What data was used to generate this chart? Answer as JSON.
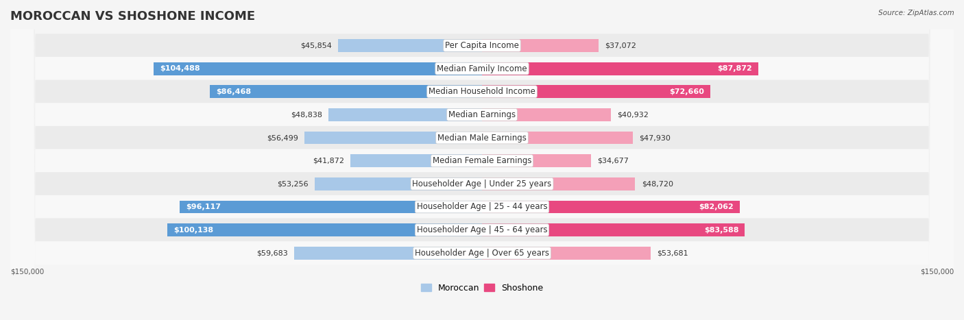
{
  "title": "MOROCCAN VS SHOSHONE INCOME",
  "source": "Source: ZipAtlas.com",
  "categories": [
    "Per Capita Income",
    "Median Family Income",
    "Median Household Income",
    "Median Earnings",
    "Median Male Earnings",
    "Median Female Earnings",
    "Householder Age | Under 25 years",
    "Householder Age | 25 - 44 years",
    "Householder Age | 45 - 64 years",
    "Householder Age | Over 65 years"
  ],
  "moroccan_values": [
    45854,
    104488,
    86468,
    48838,
    56499,
    41872,
    53256,
    96117,
    100138,
    59683
  ],
  "shoshone_values": [
    37072,
    87872,
    72660,
    40932,
    47930,
    34677,
    48720,
    82062,
    83588,
    53681
  ],
  "max_value": 150000,
  "moroccan_color_light": "#a8c8e8",
  "moroccan_color_dark": "#5b9bd5",
  "shoshone_color_light": "#f4a0b8",
  "shoshone_color_dark": "#e84880",
  "bar_height": 0.35,
  "bg_color": "#f5f5f5",
  "row_bg_light": "#f0f0f0",
  "row_bg_white": "#ffffff",
  "title_fontsize": 13,
  "label_fontsize": 8.5,
  "value_fontsize": 8,
  "legend_fontsize": 9,
  "bottom_label": "$150,000",
  "moroccan_label": "Moroccan",
  "shoshone_label": "Shoshone"
}
